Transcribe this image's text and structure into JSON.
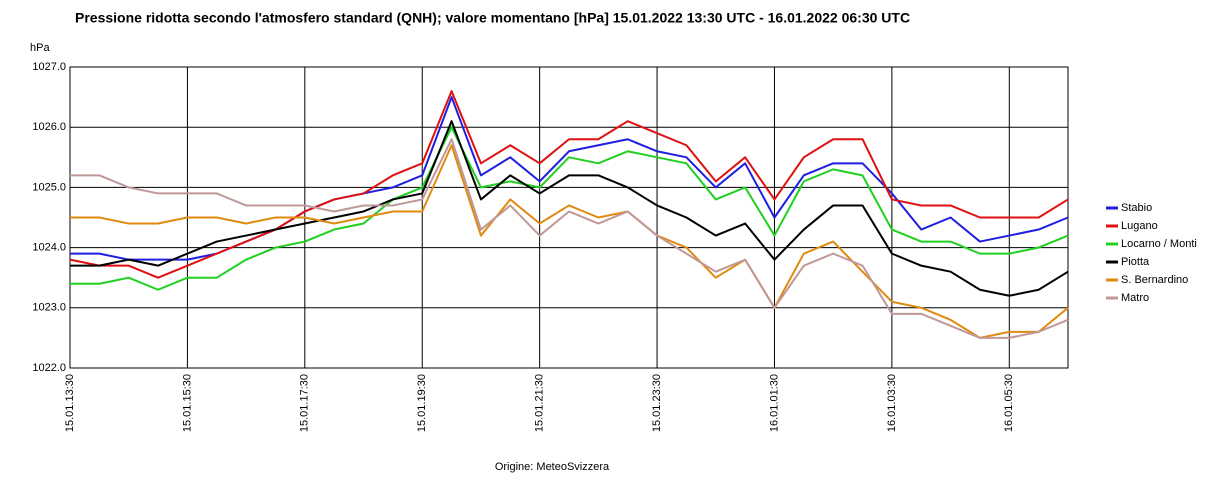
{
  "chart_data": {
    "type": "line",
    "title": "Pressione ridotta secondo l'atmosfero standard (QNH); valore momentano [hPa]  15.01.2022 13:30 UTC - 16.01.2022 06:30 UTC",
    "y_label": "hPa",
    "source": "Origine: MeteoSvizzera",
    "categories": [
      "15.01.13:30",
      null,
      null,
      null,
      "15.01.15:30",
      null,
      null,
      null,
      "15.01.17:30",
      null,
      null,
      null,
      "15.01.19:30",
      null,
      null,
      null,
      "15.01.21:30",
      null,
      null,
      null,
      "15.01.23:30",
      null,
      null,
      null,
      "16.01.01:30",
      null,
      null,
      null,
      "16.01.03:30",
      null,
      null,
      null,
      "16.01.05:30",
      null,
      null
    ],
    "ylim": [
      1022,
      1027
    ],
    "yticks": [
      {
        "value": 1022,
        "label": "1022.0"
      },
      {
        "value": 1023,
        "label": "1023.0"
      },
      {
        "value": 1024,
        "label": "1024.0"
      },
      {
        "value": 1025,
        "label": "1025.0"
      },
      {
        "value": 1026,
        "label": "1026.0"
      },
      {
        "value": 1027,
        "label": "1027.0"
      }
    ],
    "grid": true,
    "legend": "right",
    "series": [
      {
        "name": "Stabio",
        "color": "#1f1fe0",
        "values": [
          1023.9,
          1023.9,
          1023.8,
          1023.8,
          1023.8,
          1023.9,
          1024.1,
          1024.3,
          1024.6,
          1024.8,
          1024.9,
          1025.0,
          1025.2,
          1026.5,
          1025.2,
          1025.5,
          1025.1,
          1025.6,
          1025.7,
          1025.8,
          1025.6,
          1025.5,
          1025.0,
          1025.4,
          1024.5,
          1025.2,
          1025.4,
          1025.4,
          1024.9,
          1024.3,
          1024.5,
          1024.1,
          1024.2,
          1024.3,
          1024.5
        ]
      },
      {
        "name": "Lugano",
        "color": "#e01010",
        "values": [
          1023.8,
          1023.7,
          1023.7,
          1023.5,
          1023.7,
          1023.9,
          1024.1,
          1024.3,
          1024.6,
          1024.8,
          1024.9,
          1025.2,
          1025.4,
          1026.6,
          1025.4,
          1025.7,
          1025.4,
          1025.8,
          1025.8,
          1026.1,
          1025.9,
          1025.7,
          1025.1,
          1025.5,
          1024.8,
          1025.5,
          1025.8,
          1025.8,
          1024.8,
          1024.7,
          1024.7,
          1024.5,
          1024.5,
          1024.5,
          1024.8
        ]
      },
      {
        "name": "Locarno / Monti",
        "color": "#20d020",
        "values": [
          1023.4,
          1023.4,
          1023.5,
          1023.3,
          1023.5,
          1023.5,
          1023.8,
          1024.0,
          1024.1,
          1024.3,
          1024.4,
          1024.8,
          1025.0,
          1026.0,
          1025.0,
          1025.1,
          1025.0,
          1025.5,
          1025.4,
          1025.6,
          1025.5,
          1025.4,
          1024.8,
          1025.0,
          1024.2,
          1025.1,
          1025.3,
          1025.2,
          1024.3,
          1024.1,
          1024.1,
          1023.9,
          1023.9,
          1024.0,
          1024.2
        ]
      },
      {
        "name": "Piotta",
        "color": "#000000",
        "values": [
          1023.7,
          1023.7,
          1023.8,
          1023.7,
          1023.9,
          1024.1,
          1024.2,
          1024.3,
          1024.4,
          1024.5,
          1024.6,
          1024.8,
          1024.9,
          1026.1,
          1024.8,
          1025.2,
          1024.9,
          1025.2,
          1025.2,
          1025.0,
          1024.7,
          1024.5,
          1024.2,
          1024.4,
          1023.8,
          1024.3,
          1024.7,
          1024.7,
          1023.9,
          1023.7,
          1023.6,
          1023.3,
          1023.2,
          1023.3,
          1023.6
        ]
      },
      {
        "name": "S. Bernardino",
        "color": "#e08a10",
        "values": [
          1024.5,
          1024.5,
          1024.4,
          1024.4,
          1024.5,
          1024.5,
          1024.4,
          1024.5,
          1024.5,
          1024.4,
          1024.5,
          1024.6,
          1024.6,
          1025.7,
          1024.2,
          1024.8,
          1024.4,
          1024.7,
          1024.5,
          1024.6,
          1024.2,
          1024.0,
          1023.5,
          1023.8,
          1023.0,
          1023.9,
          1024.1,
          1023.6,
          1023.1,
          1023.0,
          1022.8,
          1022.5,
          1022.6,
          1022.6,
          1023.0
        ]
      },
      {
        "name": "Matro",
        "color": "#c09898",
        "values": [
          1025.2,
          1025.2,
          1025.0,
          1024.9,
          1024.9,
          1024.9,
          1024.7,
          1024.7,
          1024.7,
          1024.6,
          1024.7,
          1024.7,
          1024.8,
          1025.8,
          1024.3,
          1024.7,
          1024.2,
          1024.6,
          1024.4,
          1024.6,
          1024.2,
          1023.9,
          1023.6,
          1023.8,
          1023.0,
          1023.7,
          1023.9,
          1023.7,
          1022.9,
          1022.9,
          1022.7,
          1022.5,
          1022.5,
          1022.6,
          1022.8
        ]
      }
    ]
  }
}
